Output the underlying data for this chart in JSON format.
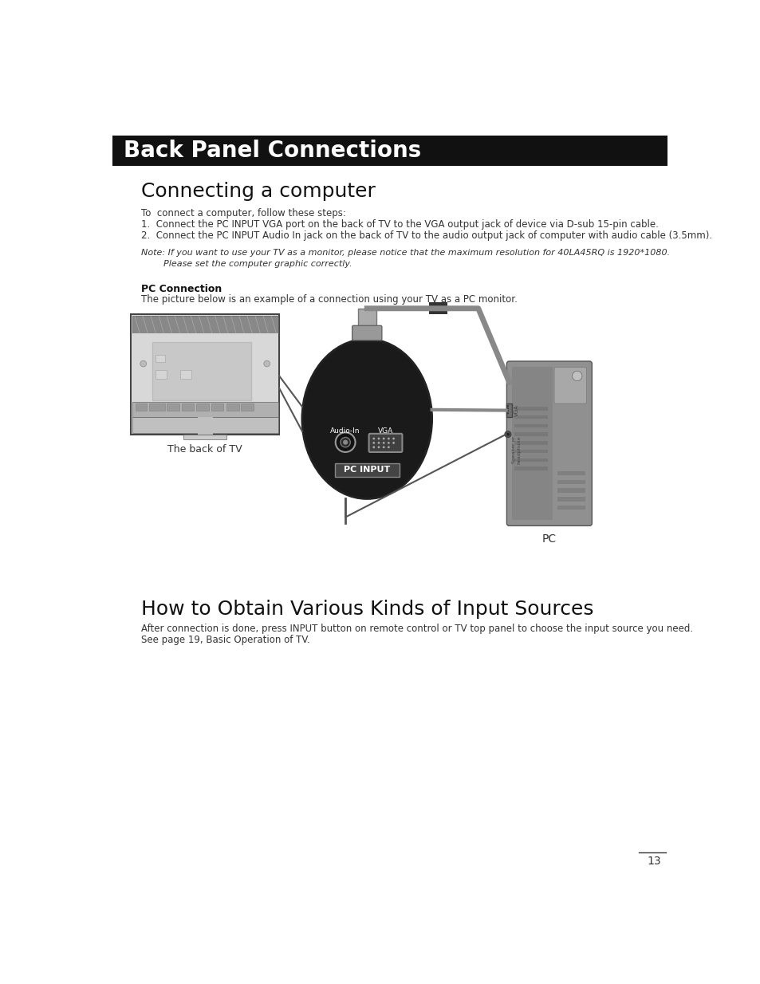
{
  "bg_color": "#ffffff",
  "header_bg": "#111111",
  "header_text": "Back Panel Connections",
  "header_text_color": "#ffffff",
  "header_fontsize": 20,
  "section1_title": "Connecting a computer",
  "section1_title_fontsize": 18,
  "body_fontsize": 8.5,
  "note_fontsize": 8,
  "bold_label_fontsize": 9,
  "intro_text": "To  connect a computer, follow these steps:",
  "step1": "1.  Connect the PC INPUT VGA port on the back of TV to the VGA output jack of device via D-sub 15-pin cable.",
  "step2": "2.  Connect the PC INPUT Audio In jack on the back of TV to the audio output jack of computer with audio cable (3.5mm).",
  "note_line1": "Note: If you want to use your TV as a monitor, please notice that the maximum resolution for 40LA45RQ is 1920*1080.",
  "note_line2": "        Please set the computer graphic correctly.",
  "pc_connection_label": "PC Connection",
  "pc_connection_desc": "The picture below is an example of a connection using your TV as a PC monitor.",
  "back_of_tv_label": "The back of TV",
  "pc_label": "PC",
  "section2_title": "How to Obtain Various Kinds of Input Sources",
  "section2_title_fontsize": 18,
  "section2_line1": "After connection is done, press INPUT button on remote control or TV top panel to choose the input source you need.",
  "section2_line2": "See page 19, Basic Operation of TV.",
  "page_number": "13"
}
